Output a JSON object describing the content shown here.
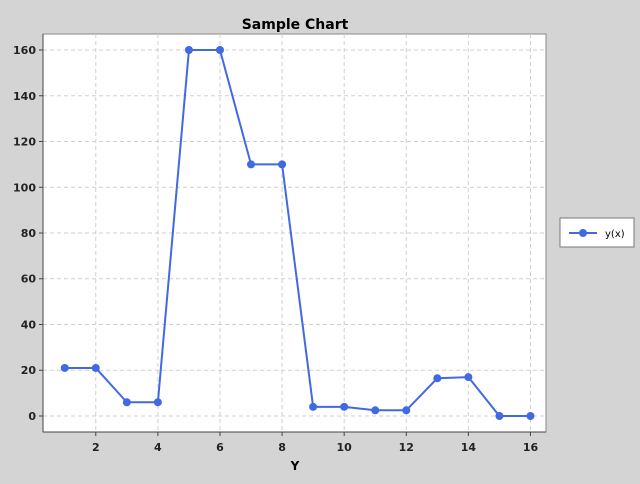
{
  "chart_data": {
    "type": "line",
    "title": "Sample Chart",
    "xlabel": "Y",
    "ylabel": "",
    "xlim": [
      0.3,
      16.5
    ],
    "ylim": [
      -7,
      167
    ],
    "x_ticks": [
      2,
      4,
      6,
      8,
      10,
      12,
      14,
      16
    ],
    "y_ticks": [
      0,
      20,
      40,
      60,
      80,
      100,
      120,
      140,
      160
    ],
    "grid": true,
    "legend_position": "right",
    "series": [
      {
        "name": "y(x)",
        "color": "#4169e1",
        "marker": "circle",
        "x": [
          1,
          2,
          3,
          4,
          5,
          6,
          7,
          8,
          9,
          10,
          11,
          12,
          13,
          14,
          15,
          16
        ],
        "y": [
          21,
          21,
          6,
          6,
          160,
          160,
          110,
          110,
          4,
          4,
          2.5,
          2.5,
          16.5,
          17,
          0,
          0
        ]
      }
    ]
  }
}
